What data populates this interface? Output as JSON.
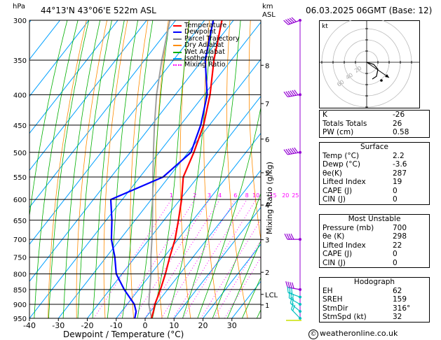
{
  "header": {
    "location": "44°13'N 43°06'E 522m ASL",
    "datetime": "06.03.2025 06GMT (Base: 12)"
  },
  "units": {
    "pressure": "hPa",
    "height_line1": "km",
    "height_line2": "ASL"
  },
  "legend": [
    {
      "label": "Temperature",
      "color": "#ff0000",
      "style": "solid"
    },
    {
      "label": "Dewpoint",
      "color": "#0000ff",
      "style": "solid"
    },
    {
      "label": "Parcel Trajectory",
      "color": "#808080",
      "style": "solid"
    },
    {
      "label": "Dry Adiabat",
      "color": "#ff8c00",
      "style": "solid"
    },
    {
      "label": "Wet Adiabat",
      "color": "#00b000",
      "style": "solid"
    },
    {
      "label": "Isotherm",
      "color": "#00a0ff",
      "style": "solid"
    },
    {
      "label": "Mixing Ratio",
      "color": "#ff00ff",
      "style": "dotted"
    }
  ],
  "chart_data": {
    "type": "line",
    "skew_t": true,
    "xlabel": "Dewpoint / Temperature (°C)",
    "ylabel": "hPa",
    "secondary_ylabel": "Mixing Ratio (g/kg)",
    "xlim": [
      -40,
      40
    ],
    "ylim": [
      950,
      300
    ],
    "yscale": "log",
    "x_ticks": [
      "-40",
      "-30",
      "-20",
      "-10",
      "0",
      "10",
      "20",
      "30"
    ],
    "pressure_levels": [
      "300",
      "350",
      "400",
      "450",
      "500",
      "550",
      "600",
      "650",
      "700",
      "750",
      "800",
      "850",
      "900",
      "950"
    ],
    "height_km_ticks": [
      {
        "label": "8",
        "p": 357
      },
      {
        "label": "7",
        "p": 414
      },
      {
        "label": "6",
        "p": 475
      },
      {
        "label": "5",
        "p": 541
      },
      {
        "label": "4",
        "p": 613
      },
      {
        "label": "3",
        "p": 701
      },
      {
        "label": "2",
        "p": 795
      },
      {
        "label": "LCL",
        "p": 866
      },
      {
        "label": "1",
        "p": 902
      }
    ],
    "mixing_ratio_labels": [
      "1",
      "2",
      "3",
      "4",
      "6",
      "8",
      "10",
      "15",
      "20",
      "25"
    ],
    "mixing_ratio_values": [
      1,
      2,
      3,
      4,
      6,
      8,
      10,
      15,
      20,
      25
    ],
    "series": [
      {
        "name": "Temperature",
        "color": "#ff0000",
        "p": [
          950,
          925,
          900,
          850,
          800,
          750,
          700,
          650,
          600,
          550,
          500,
          450,
          400,
          350,
          300
        ],
        "t": [
          2.2,
          1.0,
          -0.4,
          -2.5,
          -5.0,
          -8.0,
          -11.0,
          -15.0,
          -19.5,
          -25.0,
          -28.0,
          -32.0,
          -38.0,
          -46.0,
          -54.0
        ]
      },
      {
        "name": "Dewpoint",
        "color": "#0000ff",
        "p": [
          950,
          925,
          900,
          850,
          800,
          750,
          700,
          650,
          600,
          550,
          500,
          450,
          400,
          350,
          300
        ],
        "t": [
          -3.6,
          -5.0,
          -7.5,
          -15.0,
          -22.0,
          -27.0,
          -33.0,
          -38.0,
          -44.0,
          -32.0,
          -29.0,
          -33.0,
          -39.0,
          -49.0,
          -57.0
        ]
      },
      {
        "name": "Parcel Trajectory",
        "color": "#a0a0a0",
        "p": [
          950,
          900,
          866,
          800,
          750,
          700,
          650,
          600,
          550,
          500,
          450,
          400,
          350,
          300
        ],
        "t": [
          2.2,
          -2.5,
          -5.0,
          -10.0,
          -14.5,
          -19.0,
          -24.0,
          -29.5,
          -35.5,
          -42.0,
          -49.0,
          -56.5,
          -64.0,
          -72.0
        ]
      }
    ],
    "wind_barbs": [
      {
        "p": 300,
        "dir": 250,
        "speed": 50
      },
      {
        "p": 400,
        "dir": 260,
        "speed": 60
      },
      {
        "p": 500,
        "dir": 260,
        "speed": 55
      },
      {
        "p": 700,
        "dir": 270,
        "speed": 40
      },
      {
        "p": 850,
        "dir": 280,
        "speed": 35
      },
      {
        "p": 875,
        "dir": 290,
        "speed": 30
      },
      {
        "p": 900,
        "dir": 300,
        "speed": 25
      },
      {
        "p": 925,
        "dir": 310,
        "speed": 20
      },
      {
        "p": 950,
        "dir": 316,
        "speed": 15
      }
    ]
  },
  "hodograph": {
    "label": "kt",
    "ring_labels": [
      "20",
      "40",
      "60"
    ]
  },
  "indices": {
    "block1": [
      {
        "key": "K",
        "value": "-26"
      },
      {
        "key": "Totals Totals",
        "value": "26"
      },
      {
        "key": "PW (cm)",
        "value": "0.58"
      }
    ],
    "surface_title": "Surface",
    "surface": [
      {
        "key": "Temp (°C)",
        "value": "2.2"
      },
      {
        "key": "Dewp (°C)",
        "value": "-3.6"
      },
      {
        "key": "θe(K)",
        "value": "287"
      },
      {
        "key": "Lifted Index",
        "value": "19"
      },
      {
        "key": "CAPE (J)",
        "value": "0"
      },
      {
        "key": "CIN (J)",
        "value": "0"
      }
    ],
    "unstable_title": "Most Unstable",
    "unstable": [
      {
        "key": "Pressure (mb)",
        "value": "700"
      },
      {
        "key": "θe (K)",
        "value": "298"
      },
      {
        "key": "Lifted Index",
        "value": "22"
      },
      {
        "key": "CAPE (J)",
        "value": "0"
      },
      {
        "key": "CIN (J)",
        "value": "0"
      }
    ],
    "hodo_title": "Hodograph",
    "hodo": [
      {
        "key": "EH",
        "value": "62"
      },
      {
        "key": "SREH",
        "value": "159"
      },
      {
        "key": "StmDir",
        "value": "316°"
      },
      {
        "key": "StmSpd (kt)",
        "value": "32"
      }
    ]
  },
  "footer": {
    "copyright_symbol": "©",
    "site": "weatheronline.co.uk"
  }
}
